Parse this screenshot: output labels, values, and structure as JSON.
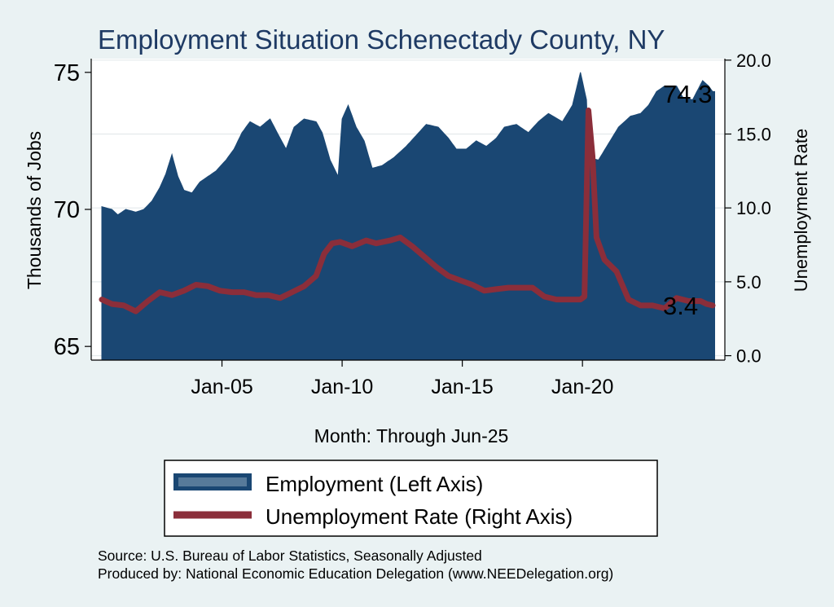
{
  "chart_data": {
    "type": "area+line",
    "title": "Employment Situation Schenectady  County, NY",
    "xlabel": "Month: Through Jun-25",
    "ylabel_left": "Thousands of Jobs",
    "ylabel_right": "Unemployment Rate",
    "x_range": [
      "2000-01",
      "2025-06"
    ],
    "x_ticks": [
      "Jan-05",
      "Jan-10",
      "Jan-15",
      "Jan-20"
    ],
    "y_left": {
      "ticks": [
        "65",
        "70",
        "75"
      ],
      "range": [
        64.5,
        75.5
      ]
    },
    "y_right": {
      "ticks": [
        "0.0",
        "5.0",
        "10.0",
        "15.0",
        "20.0"
      ],
      "range": [
        -0.3,
        20.1
      ]
    },
    "grid": true,
    "legend": {
      "position": "bottom",
      "entries": [
        "Employment (Left Axis)",
        "Unemployment Rate (Right Axis)"
      ]
    },
    "end_labels": {
      "employment": "74.3",
      "unemployment": "3.4"
    },
    "source_lines": [
      "Source: U.S. Bureau of Labor Statistics, Seasonally Adjusted",
      "Produced by: National Economic Education Delegation (www.NEEDelegation.org)"
    ],
    "colors": {
      "background": "#eaf2f3",
      "plot_bg": "#ffffff",
      "employment": "#1a4773",
      "unemployment": "#8b2e3a",
      "title": "#1e3a64"
    },
    "series": [
      {
        "name": "Employment (Left Axis)",
        "axis": "left",
        "points": [
          [
            "2000-01",
            70.1
          ],
          [
            "2000-06",
            70.0
          ],
          [
            "2000-09",
            69.8
          ],
          [
            "2001-01",
            70.0
          ],
          [
            "2001-06",
            69.9
          ],
          [
            "2001-10",
            70.0
          ],
          [
            "2002-02",
            70.3
          ],
          [
            "2002-06",
            70.8
          ],
          [
            "2002-09",
            71.3
          ],
          [
            "2002-12",
            72.0
          ],
          [
            "2003-03",
            71.2
          ],
          [
            "2003-06",
            70.7
          ],
          [
            "2003-10",
            70.6
          ],
          [
            "2004-02",
            71.0
          ],
          [
            "2004-06",
            71.2
          ],
          [
            "2004-10",
            71.4
          ],
          [
            "2005-03",
            71.8
          ],
          [
            "2005-07",
            72.2
          ],
          [
            "2005-11",
            72.8
          ],
          [
            "2006-03",
            73.2
          ],
          [
            "2006-08",
            73.0
          ],
          [
            "2007-01",
            73.3
          ],
          [
            "2007-06",
            72.6
          ],
          [
            "2007-09",
            72.2
          ],
          [
            "2008-01",
            73.0
          ],
          [
            "2008-06",
            73.3
          ],
          [
            "2008-12",
            73.2
          ],
          [
            "2009-03",
            72.8
          ],
          [
            "2009-07",
            71.8
          ],
          [
            "2009-11",
            71.2
          ],
          [
            "2010-01",
            73.3
          ],
          [
            "2010-04",
            73.8
          ],
          [
            "2010-08",
            73.0
          ],
          [
            "2010-12",
            72.5
          ],
          [
            "2011-04",
            71.5
          ],
          [
            "2011-09",
            71.6
          ],
          [
            "2012-03",
            71.9
          ],
          [
            "2012-09",
            72.3
          ],
          [
            "2013-02",
            72.7
          ],
          [
            "2013-07",
            73.1
          ],
          [
            "2014-01",
            73.0
          ],
          [
            "2014-06",
            72.6
          ],
          [
            "2014-10",
            72.2
          ],
          [
            "2015-03",
            72.2
          ],
          [
            "2015-08",
            72.5
          ],
          [
            "2016-01",
            72.3
          ],
          [
            "2016-06",
            72.6
          ],
          [
            "2016-10",
            73.0
          ],
          [
            "2017-04",
            73.1
          ],
          [
            "2017-10",
            72.8
          ],
          [
            "2018-03",
            73.2
          ],
          [
            "2018-08",
            73.5
          ],
          [
            "2019-03",
            73.2
          ],
          [
            "2019-08",
            73.8
          ],
          [
            "2019-12",
            75.0
          ],
          [
            "2020-03",
            74.0
          ],
          [
            "2020-04",
            71.9
          ],
          [
            "2020-09",
            71.8
          ],
          [
            "2021-02",
            72.4
          ],
          [
            "2021-07",
            73.0
          ],
          [
            "2022-01",
            73.4
          ],
          [
            "2022-06",
            73.5
          ],
          [
            "2022-10",
            73.8
          ],
          [
            "2023-02",
            74.3
          ],
          [
            "2023-06",
            74.5
          ],
          [
            "2023-12",
            74.5
          ],
          [
            "2024-03",
            74.1
          ],
          [
            "2024-08",
            74.0
          ],
          [
            "2025-01",
            74.7
          ],
          [
            "2025-04",
            74.5
          ],
          [
            "2025-06",
            74.3
          ]
        ]
      },
      {
        "name": "Unemployment Rate (Right Axis)",
        "axis": "right",
        "points": [
          [
            "2000-01",
            3.8
          ],
          [
            "2000-06",
            3.5
          ],
          [
            "2000-12",
            3.4
          ],
          [
            "2001-06",
            3.0
          ],
          [
            "2001-12",
            3.7
          ],
          [
            "2002-06",
            4.3
          ],
          [
            "2002-12",
            4.1
          ],
          [
            "2003-06",
            4.4
          ],
          [
            "2003-12",
            4.8
          ],
          [
            "2004-06",
            4.7
          ],
          [
            "2004-12",
            4.4
          ],
          [
            "2005-06",
            4.3
          ],
          [
            "2005-12",
            4.3
          ],
          [
            "2006-06",
            4.1
          ],
          [
            "2006-12",
            4.1
          ],
          [
            "2007-06",
            3.9
          ],
          [
            "2007-12",
            4.3
          ],
          [
            "2008-06",
            4.7
          ],
          [
            "2008-12",
            5.4
          ],
          [
            "2009-04",
            6.9
          ],
          [
            "2009-08",
            7.6
          ],
          [
            "2009-12",
            7.7
          ],
          [
            "2010-06",
            7.4
          ],
          [
            "2011-01",
            7.8
          ],
          [
            "2011-06",
            7.6
          ],
          [
            "2012-01",
            7.8
          ],
          [
            "2012-06",
            8.0
          ],
          [
            "2012-12",
            7.4
          ],
          [
            "2013-06",
            6.7
          ],
          [
            "2013-12",
            6.0
          ],
          [
            "2014-06",
            5.4
          ],
          [
            "2014-12",
            5.1
          ],
          [
            "2015-06",
            4.8
          ],
          [
            "2015-12",
            4.4
          ],
          [
            "2016-06",
            4.5
          ],
          [
            "2016-12",
            4.6
          ],
          [
            "2017-06",
            4.6
          ],
          [
            "2017-12",
            4.6
          ],
          [
            "2018-06",
            4.0
          ],
          [
            "2018-12",
            3.8
          ],
          [
            "2019-06",
            3.8
          ],
          [
            "2019-12",
            3.8
          ],
          [
            "2020-02",
            4.0
          ],
          [
            "2020-04",
            16.6
          ],
          [
            "2020-06",
            13.5
          ],
          [
            "2020-08",
            8.0
          ],
          [
            "2020-12",
            6.5
          ],
          [
            "2021-06",
            5.7
          ],
          [
            "2021-12",
            3.8
          ],
          [
            "2022-06",
            3.4
          ],
          [
            "2022-12",
            3.4
          ],
          [
            "2023-06",
            3.2
          ],
          [
            "2023-12",
            3.9
          ],
          [
            "2024-06",
            3.7
          ],
          [
            "2024-12",
            3.7
          ],
          [
            "2025-03",
            3.5
          ],
          [
            "2025-06",
            3.4
          ]
        ]
      }
    ]
  }
}
